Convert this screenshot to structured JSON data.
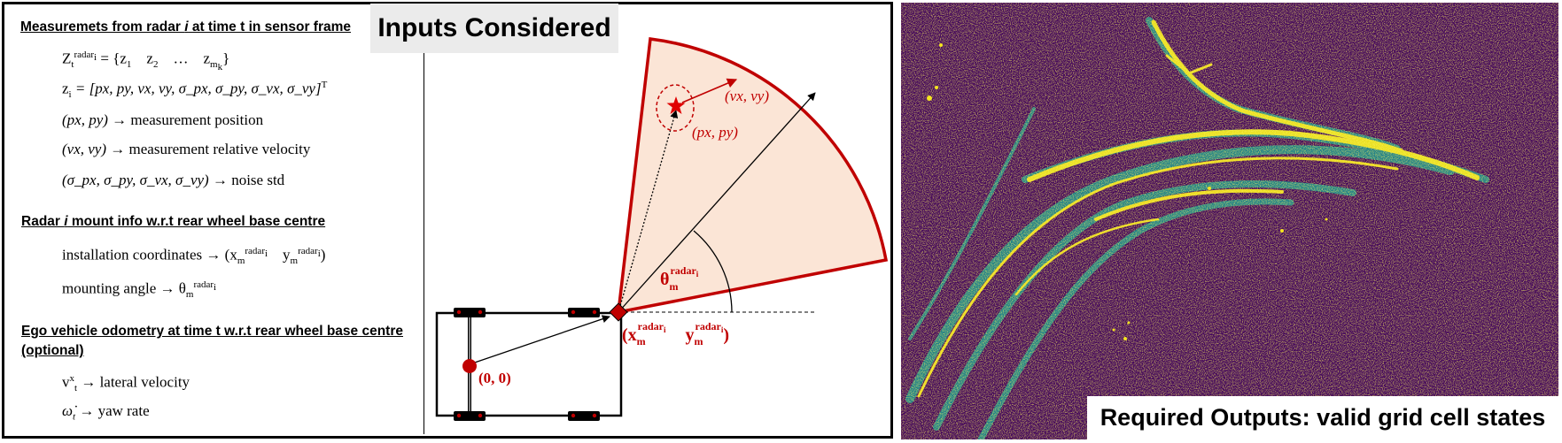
{
  "diagram": {
    "title": "Inputs Considered",
    "output_title": "Required Outputs: valid grid cell states",
    "sections": {
      "measurements": {
        "heading_pre": "Measuremets from radar ",
        "heading_var": "i",
        "heading_post": " at time t in sensor frame",
        "set_lhs": "Z",
        "set_sub": "t",
        "set_sup": "radar",
        "set_sup_sub": "i",
        "set_rhs": "= {z",
        "set_z1_sub": "1",
        "set_z2": "z",
        "set_z2_sub": "2",
        "set_dots": "…",
        "set_zm": "z",
        "set_zm_sub": "m",
        "set_zm_subsub": "k",
        "set_close": "}",
        "zi_lhs": "z",
        "zi_sub": "i",
        "zi_rhs": "= [px, py, vx, vy, σ_px, σ_py, σ_vx, σ_vy]",
        "zi_sup": "T",
        "pos_var": "(px, py)",
        "pos_desc": "→ measurement position",
        "vel_var": "(vx, vy)",
        "vel_desc": "→ measurement relative velocity",
        "noise_var": "(σ_px, σ_py, σ_vx, σ_vy)",
        "noise_desc": "→ noise std"
      },
      "mount": {
        "heading_pre": "Radar ",
        "heading_var": "i",
        "heading_post": " mount info w.r.t rear wheel base centre",
        "install_label": "installation coordinates →",
        "x_main": "x",
        "y_main": "y",
        "m_sub": "m",
        "radar_sup": "radar",
        "i_subsub": "i",
        "angle_label": "mounting angle →",
        "theta": "θ"
      },
      "odometry": {
        "heading_line1": "Ego vehicle odometry at time t w.r.t rear wheel base centre",
        "heading_line2": "(optional)",
        "vel_main": "v",
        "vel_sup": "x",
        "vel_sub": "t",
        "vel_desc": "→ lateral velocity",
        "yaw_main": "ω̇",
        "yaw_sub": "t",
        "yaw_desc": "→ yaw rate"
      }
    },
    "figure": {
      "vel_label": "(vx, vy)",
      "pos_label": "(px, py)",
      "origin_label": "(0, 0)",
      "theta": "θ",
      "m": "m",
      "radar": "radar",
      "i": "i",
      "x": "x",
      "y": "y",
      "open_paren": "(",
      "close_paren": ")"
    },
    "colors": {
      "accent": "#c00000",
      "fov_fill": "#fbe5d6",
      "grid_background": "#460a5d",
      "grid_foreground": "#f5e61e",
      "grid_mid": "#21908d"
    }
  }
}
